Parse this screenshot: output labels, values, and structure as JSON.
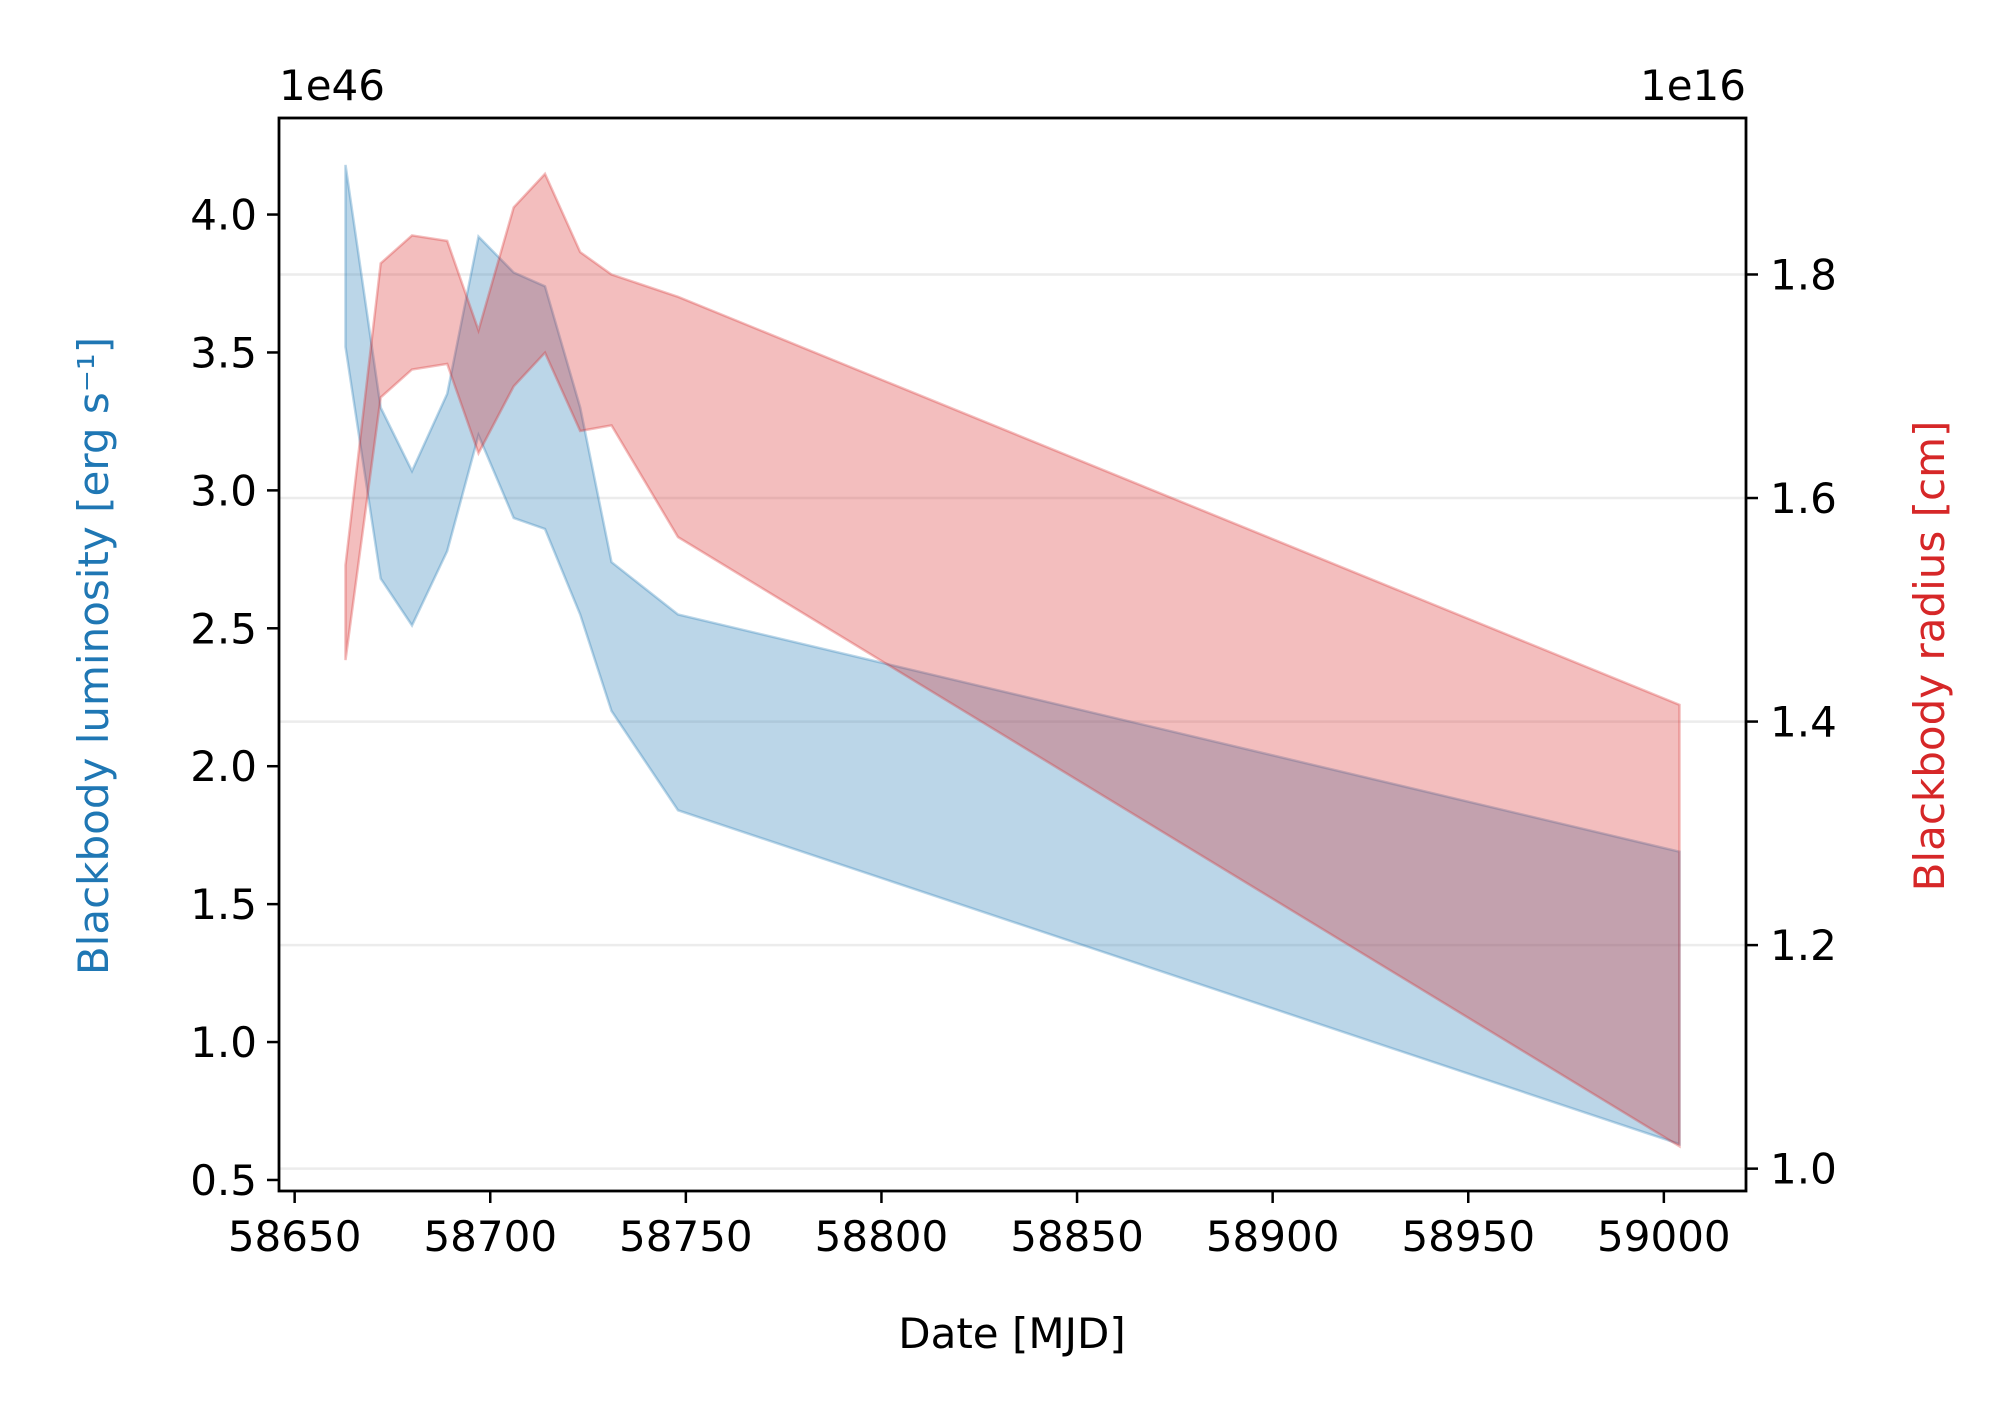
{
  "chart_data": {
    "type": "area",
    "xlabel": "Date [MJD]",
    "ylabel_left": "Blackbody luminosity [erg s⁻¹]",
    "ylabel_right": "Blackbody radius [cm]",
    "left_offset_label": "1e46",
    "right_offset_label": "1e16",
    "xlim": [
      58646,
      59021
    ],
    "ylim_left": [
      0.46,
      4.35
    ],
    "ylim_right": [
      0.98,
      1.94
    ],
    "x_ticks": [
      58650,
      58700,
      58750,
      58800,
      58850,
      58900,
      58950,
      59000
    ],
    "x_tick_labels": [
      "58650",
      "58700",
      "58750",
      "58800",
      "58850",
      "58900",
      "58950",
      "59000"
    ],
    "y_left_ticks": [
      0.5,
      1.0,
      1.5,
      2.0,
      2.5,
      3.0,
      3.5,
      4.0
    ],
    "y_left_tick_labels": [
      "0.5",
      "1.0",
      "1.5",
      "2.0",
      "2.5",
      "3.0",
      "3.5",
      "4.0"
    ],
    "y_right_ticks": [
      1.0,
      1.2,
      1.4,
      1.6,
      1.8
    ],
    "y_right_tick_labels": [
      "1.0",
      "1.2",
      "1.4",
      "1.6",
      "1.8"
    ],
    "grid": "horizontal, right axis",
    "series": [
      {
        "axis": "left",
        "color": "#1f77b4",
        "x": [
          58663,
          58672,
          58680,
          58689,
          58697,
          58706,
          58714,
          58723,
          58731,
          58748,
          59004
        ],
        "upper": [
          4.18,
          3.3,
          3.07,
          3.35,
          3.92,
          3.79,
          3.74,
          3.3,
          2.74,
          2.55,
          1.69
        ],
        "lower": [
          3.52,
          2.68,
          2.51,
          2.78,
          3.2,
          2.9,
          2.86,
          2.55,
          2.2,
          1.84,
          0.63
        ]
      },
      {
        "axis": "right",
        "color": "#d62728",
        "x": [
          58663,
          58672,
          58680,
          58689,
          58697,
          58706,
          58714,
          58723,
          58731,
          58748,
          59004
        ],
        "upper": [
          1.54,
          1.81,
          1.835,
          1.83,
          1.75,
          1.86,
          1.89,
          1.82,
          1.8,
          1.78,
          1.415
        ],
        "lower": [
          1.455,
          1.69,
          1.715,
          1.72,
          1.64,
          1.7,
          1.73,
          1.66,
          1.665,
          1.565,
          1.02
        ]
      }
    ]
  }
}
